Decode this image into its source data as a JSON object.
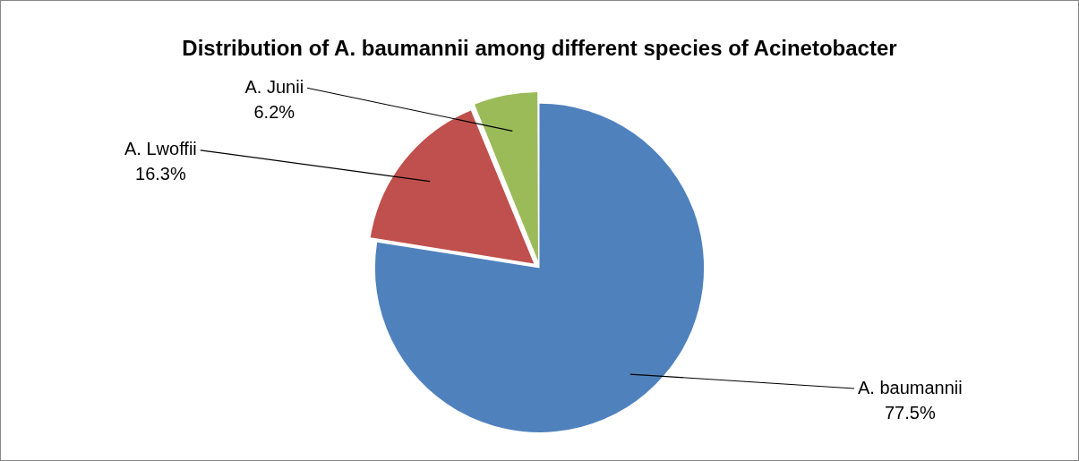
{
  "chart_data": {
    "type": "pie",
    "title": "Distribution of A. baumannii among different species of Acinetobacter",
    "categories": [
      "A. baumannii",
      "A. Lwoffii",
      "A. Junii"
    ],
    "values": [
      77.5,
      16.3,
      6.2
    ],
    "colors": [
      "#4f81bd",
      "#c0504d",
      "#9bbb59"
    ],
    "value_labels": [
      "77.5%",
      "16.3%",
      "6.2%"
    ],
    "legend": false
  }
}
